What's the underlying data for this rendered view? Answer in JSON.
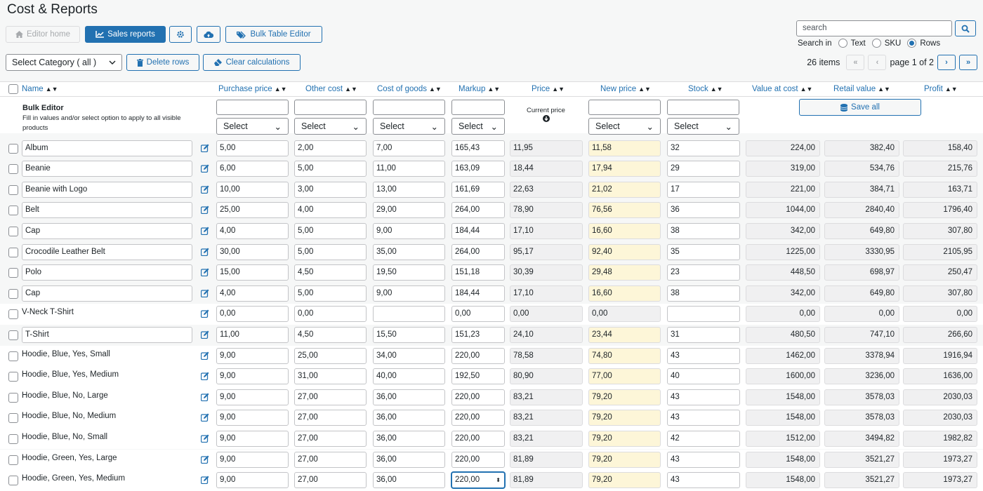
{
  "page": {
    "title": "Cost & Reports"
  },
  "toolbar": {
    "editor_home": "Editor home",
    "sales_reports": "Sales reports",
    "bulk_table_editor": "Bulk Table Editor",
    "select_category": "Select Category ( all )",
    "delete_rows": "Delete rows",
    "clear_calculations": "Clear calculations"
  },
  "search": {
    "placeholder": "search",
    "search_in_label": "Search in",
    "options": [
      "Text",
      "SKU",
      "Rows"
    ],
    "selected": "Rows"
  },
  "pagination": {
    "items": "26 items",
    "page": "page 1 of 2",
    "first": "«",
    "prev": "‹",
    "next": "›",
    "last": "»"
  },
  "columns": {
    "name": "Name",
    "purchase_price": "Purchase price",
    "other_cost": "Other cost",
    "cost_of_goods": "Cost of goods",
    "markup": "Markup",
    "price": "Price",
    "new_price": "New price",
    "stock": "Stock",
    "value_at_cost": "Value at cost",
    "retail_value": "Retail value",
    "profit": "Profit"
  },
  "bulk_editor": {
    "title": "Bulk Editor",
    "description": "Fill in values and/or select option to apply to all visible products",
    "select_label": "Select",
    "current_price": "Current price",
    "save_all": "Save all"
  },
  "rows": [
    {
      "name": "Album",
      "purchase": "5,00",
      "other": "2,00",
      "cog": "7,00",
      "markup": "165,43",
      "price": "11,95",
      "new_price": "11,58",
      "stock": "32",
      "value_cost": "224,00",
      "retail": "382,40",
      "profit": "158,40"
    },
    {
      "name": "Beanie",
      "purchase": "6,00",
      "other": "5,00",
      "cog": "11,00",
      "markup": "163,09",
      "price": "18,44",
      "new_price": "17,94",
      "stock": "29",
      "value_cost": "319,00",
      "retail": "534,76",
      "profit": "215,76"
    },
    {
      "name": "Beanie with Logo",
      "purchase": "10,00",
      "other": "3,00",
      "cog": "13,00",
      "markup": "161,69",
      "price": "22,63",
      "new_price": "21,02",
      "stock": "17",
      "value_cost": "221,00",
      "retail": "384,71",
      "profit": "163,71"
    },
    {
      "name": "Belt",
      "purchase": "25,00",
      "other": "4,00",
      "cog": "29,00",
      "markup": "264,00",
      "price": "78,90",
      "new_price": "76,56",
      "stock": "36",
      "value_cost": "1044,00",
      "retail": "2840,40",
      "profit": "1796,40"
    },
    {
      "name": "Cap",
      "purchase": "4,00",
      "other": "5,00",
      "cog": "9,00",
      "markup": "184,44",
      "price": "17,10",
      "new_price": "16,60",
      "stock": "38",
      "value_cost": "342,00",
      "retail": "649,80",
      "profit": "307,80"
    },
    {
      "name": "Crocodile Leather Belt",
      "purchase": "30,00",
      "other": "5,00",
      "cog": "35,00",
      "markup": "264,00",
      "price": "95,17",
      "new_price": "92,40",
      "stock": "35",
      "value_cost": "1225,00",
      "retail": "3330,95",
      "profit": "2105,95"
    },
    {
      "name": "Polo",
      "purchase": "15,00",
      "other": "4,50",
      "cog": "19,50",
      "markup": "151,18",
      "price": "30,39",
      "new_price": "29,48",
      "stock": "23",
      "value_cost": "448,50",
      "retail": "698,97",
      "profit": "250,47"
    },
    {
      "name": "Cap",
      "purchase": "4,00",
      "other": "5,00",
      "cog": "9,00",
      "markup": "184,44",
      "price": "17,10",
      "new_price": "16,60",
      "stock": "38",
      "value_cost": "342,00",
      "retail": "649,80",
      "profit": "307,80"
    },
    {
      "name": "V-Neck T-Shirt",
      "purchase": "0,00",
      "other": "0,00",
      "cog": "",
      "markup": "0,00",
      "price": "0,00",
      "new_price": "0,00",
      "stock": "",
      "value_cost": "0,00",
      "retail": "0,00",
      "profit": "0,00"
    },
    {
      "name": "T-Shirt",
      "purchase": "11,00",
      "other": "4,50",
      "cog": "15,50",
      "markup": "151,23",
      "price": "24,10",
      "new_price": "23,44",
      "stock": "31",
      "value_cost": "480,50",
      "retail": "747,10",
      "profit": "266,60"
    },
    {
      "name": "Hoodie, Blue, Yes, Small",
      "purchase": "9,00",
      "other": "25,00",
      "cog": "34,00",
      "markup": "220,00",
      "price": "78,58",
      "new_price": "74,80",
      "stock": "43",
      "value_cost": "1462,00",
      "retail": "3378,94",
      "profit": "1916,94"
    },
    {
      "name": "Hoodie, Blue, Yes, Medium",
      "purchase": "9,00",
      "other": "31,00",
      "cog": "40,00",
      "markup": "192,50",
      "price": "80,90",
      "new_price": "77,00",
      "stock": "40",
      "value_cost": "1600,00",
      "retail": "3236,00",
      "profit": "1636,00"
    },
    {
      "name": "Hoodie, Blue, No, Large",
      "purchase": "9,00",
      "other": "27,00",
      "cog": "36,00",
      "markup": "220,00",
      "price": "83,21",
      "new_price": "79,20",
      "stock": "43",
      "value_cost": "1548,00",
      "retail": "3578,03",
      "profit": "2030,03"
    },
    {
      "name": "Hoodie, Blue, No, Medium",
      "purchase": "9,00",
      "other": "27,00",
      "cog": "36,00",
      "markup": "220,00",
      "price": "83,21",
      "new_price": "79,20",
      "stock": "43",
      "value_cost": "1548,00",
      "retail": "3578,03",
      "profit": "2030,03"
    },
    {
      "name": "Hoodie, Blue, No, Small",
      "purchase": "9,00",
      "other": "27,00",
      "cog": "36,00",
      "markup": "220,00",
      "price": "83,21",
      "new_price": "79,20",
      "stock": "42",
      "value_cost": "1512,00",
      "retail": "3494,82",
      "profit": "1982,82"
    },
    {
      "name": "Hoodie, Green, Yes, Large",
      "purchase": "9,00",
      "other": "27,00",
      "cog": "36,00",
      "markup": "220,00",
      "price": "81,89",
      "new_price": "79,20",
      "stock": "43",
      "value_cost": "1548,00",
      "retail": "3521,27",
      "profit": "1973,27"
    },
    {
      "name": "Hoodie, Green, Yes, Medium",
      "purchase": "9,00",
      "other": "27,00",
      "cog": "36,00",
      "markup": "220,00",
      "price": "81,89",
      "new_price": "79,20",
      "stock": "43",
      "value_cost": "1548,00",
      "retail": "3521,27",
      "profit": "1973,27"
    }
  ],
  "row_meta": {
    "name_input_rows": [
      0,
      1,
      2,
      3,
      4,
      5,
      6,
      7,
      9
    ],
    "alt_bg_rows": [
      8,
      10,
      11,
      12,
      13,
      14,
      15,
      16
    ],
    "focused_markup_row": 16
  },
  "colors": {
    "accent": "#2271b1",
    "new_price_bg": "#fdf6d8",
    "readonly_bg": "#f0f0f1"
  }
}
